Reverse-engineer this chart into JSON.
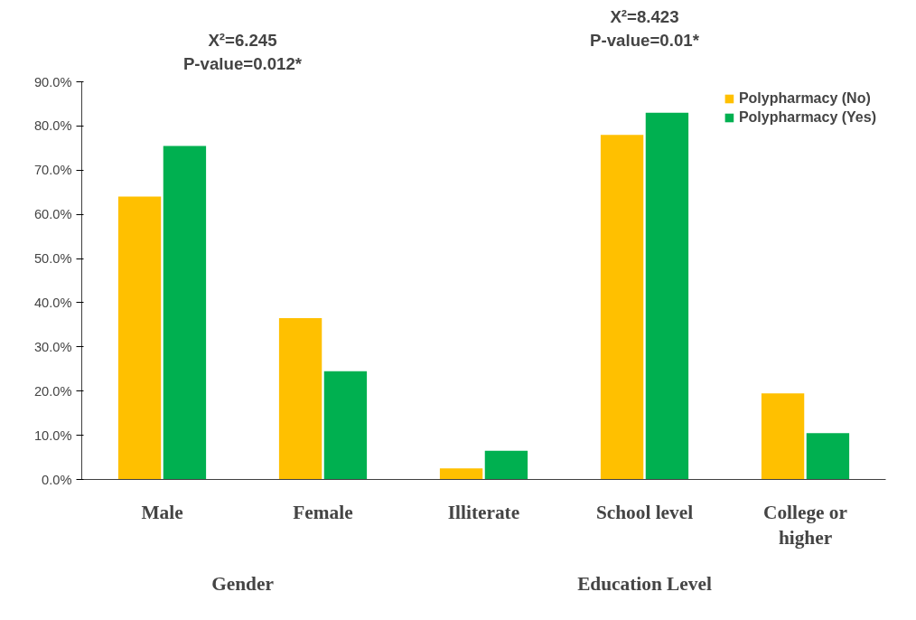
{
  "chart_data": {
    "type": "bar",
    "categories": [
      "Male",
      "Female",
      "Illiterate",
      "School level",
      "College or higher"
    ],
    "series": [
      {
        "name": "Polypharmacy (No)",
        "color": "#ffc000",
        "values": [
          64,
          36.5,
          2.5,
          78,
          19.5
        ]
      },
      {
        "name": "Polypharmacy (Yes)",
        "color": "#00b050",
        "values": [
          75.5,
          24.5,
          6.5,
          83,
          10.5
        ]
      }
    ],
    "ylim": [
      0,
      90
    ],
    "yticks": [
      {
        "value": 0,
        "label": "0.0%"
      },
      {
        "value": 10,
        "label": "10.0%"
      },
      {
        "value": 20,
        "label": "20.0%"
      },
      {
        "value": 30,
        "label": "30.0%"
      },
      {
        "value": 40,
        "label": "40.0%"
      },
      {
        "value": 50,
        "label": "50.0%"
      },
      {
        "value": 60,
        "label": "60.0%"
      },
      {
        "value": 70,
        "label": "70.0%"
      },
      {
        "value": 80,
        "label": "80.0%"
      },
      {
        "value": 90,
        "label": "90.0%"
      }
    ],
    "annotations": [
      "X²=6.245",
      "P-value=0.012*",
      "X²=8.423",
      "P-value=0.01*",
      "Gender",
      "Education Level"
    ],
    "grid": false,
    "legend": "top right"
  }
}
